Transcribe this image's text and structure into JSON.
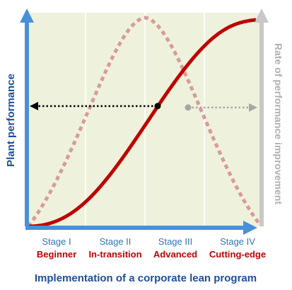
{
  "left_axis_label": "Plant performance",
  "right_axis_label": "Rate of performance improvement",
  "x_axis_title": "Implementation of a corporate lean program",
  "stages": [
    {
      "stage": "Stage I",
      "name": "Beginner"
    },
    {
      "stage": "Stage II",
      "name": "In-transition"
    },
    {
      "stage": "Stage III",
      "name": "Advanced"
    },
    {
      "stage": "Stage IV",
      "name": "Cutting-edge"
    }
  ],
  "colors": {
    "background": "#eef2dc",
    "axis_blue": "#4a90d9",
    "axis_gray": "#c8c8c8",
    "performance_curve": "#c00000",
    "improvement_curve": "#d99a9a",
    "stage_text": "#2e75b6",
    "stage_name": "#c00000",
    "left_label": "#1f4e9a",
    "right_label": "#b0b0b0",
    "title_text": "#1f4e9a",
    "black_arrow": "#000000",
    "gray_arrow": "#a6a6a6"
  }
}
